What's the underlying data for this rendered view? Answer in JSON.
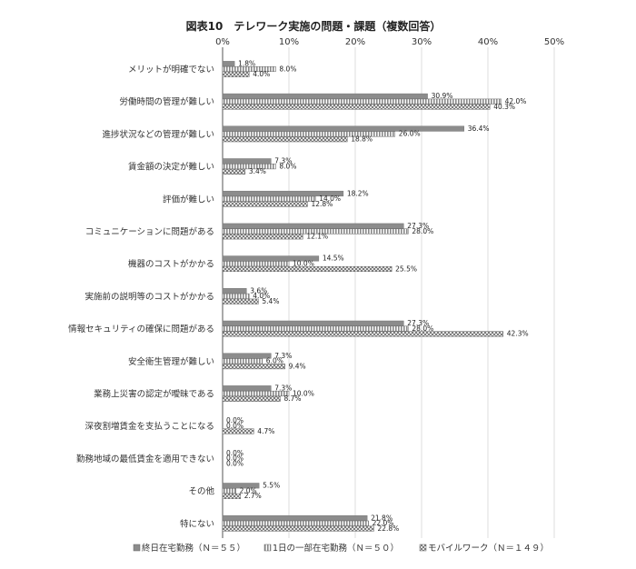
{
  "chart_data": {
    "type": "bar",
    "orientation": "horizontal",
    "title": "図表10　テレワーク実施の問題・課題（複数回答）",
    "xlim": [
      0,
      50
    ],
    "x_ticks": [
      "0%",
      "10%",
      "20%",
      "30%",
      "40%",
      "50%"
    ],
    "x_tick_values": [
      0,
      10,
      20,
      30,
      40,
      50
    ],
    "grid": true,
    "legend_position": "bottom",
    "categories": [
      "メリットが明確でない",
      "労働時間の管理が難しい",
      "進捗状況などの管理が難しい",
      "賃金額の決定が難しい",
      "評価が難しい",
      "コミュニケーションに問題がある",
      "機器のコストがかかる",
      "実施前の説明等のコストがかかる",
      "情報セキュリティの確保に問題がある",
      "安全衛生管理が難しい",
      "業務上災害の認定が曖昧である",
      "深夜割増賃金を支払うことになる",
      "勤務地域の最低賃金を適用できない",
      "その他",
      "特にない"
    ],
    "series": [
      {
        "name": "終日在宅勤務（Ｎ＝５５）",
        "pattern": "solid",
        "color": "#8c8c8c",
        "values": [
          1.8,
          30.9,
          36.4,
          7.3,
          18.2,
          27.3,
          14.5,
          3.6,
          27.3,
          7.3,
          7.3,
          0.0,
          0.0,
          5.5,
          21.8
        ],
        "labels": [
          "1.8%",
          "30.9%",
          "36.4%",
          "7.3%",
          "18.2%",
          "27.3%",
          "14.5%",
          "3.6%",
          "27.3%",
          "7.3%",
          "7.3%",
          "0.0%",
          "0.0%",
          "5.5%",
          "21.8%"
        ]
      },
      {
        "name": "1日の一部在宅勤務（Ｎ＝５０）",
        "pattern": "vertical-stripes",
        "color": "#9a9a9a",
        "values": [
          8.0,
          42.0,
          26.0,
          8.0,
          14.0,
          28.0,
          10.0,
          4.0,
          28.0,
          6.0,
          10.0,
          0.0,
          0.0,
          2.0,
          22.0
        ],
        "labels": [
          "8.0%",
          "42.0%",
          "26.0%",
          "8.0%",
          "14.0%",
          "28.0%",
          "10.0%",
          "4.0%",
          "28.0%",
          "6.0%",
          "10.0%",
          "0.0%",
          "0.0%",
          "2.0%",
          "22.0%"
        ]
      },
      {
        "name": "モバイルワーク（Ｎ＝１４９）",
        "pattern": "crosshatch",
        "color": "#777777",
        "values": [
          4.0,
          40.3,
          18.8,
          3.4,
          12.8,
          12.1,
          25.5,
          5.4,
          42.3,
          9.4,
          8.7,
          4.7,
          0.0,
          2.7,
          22.8
        ],
        "labels": [
          "4.0%",
          "40.3%",
          "18.8%",
          "3.4%",
          "12.8%",
          "12.1%",
          "25.5%",
          "5.4%",
          "42.3%",
          "9.4%",
          "8.7%",
          "4.7%",
          "0.0%",
          "2.7%",
          "22.8%"
        ]
      }
    ]
  }
}
